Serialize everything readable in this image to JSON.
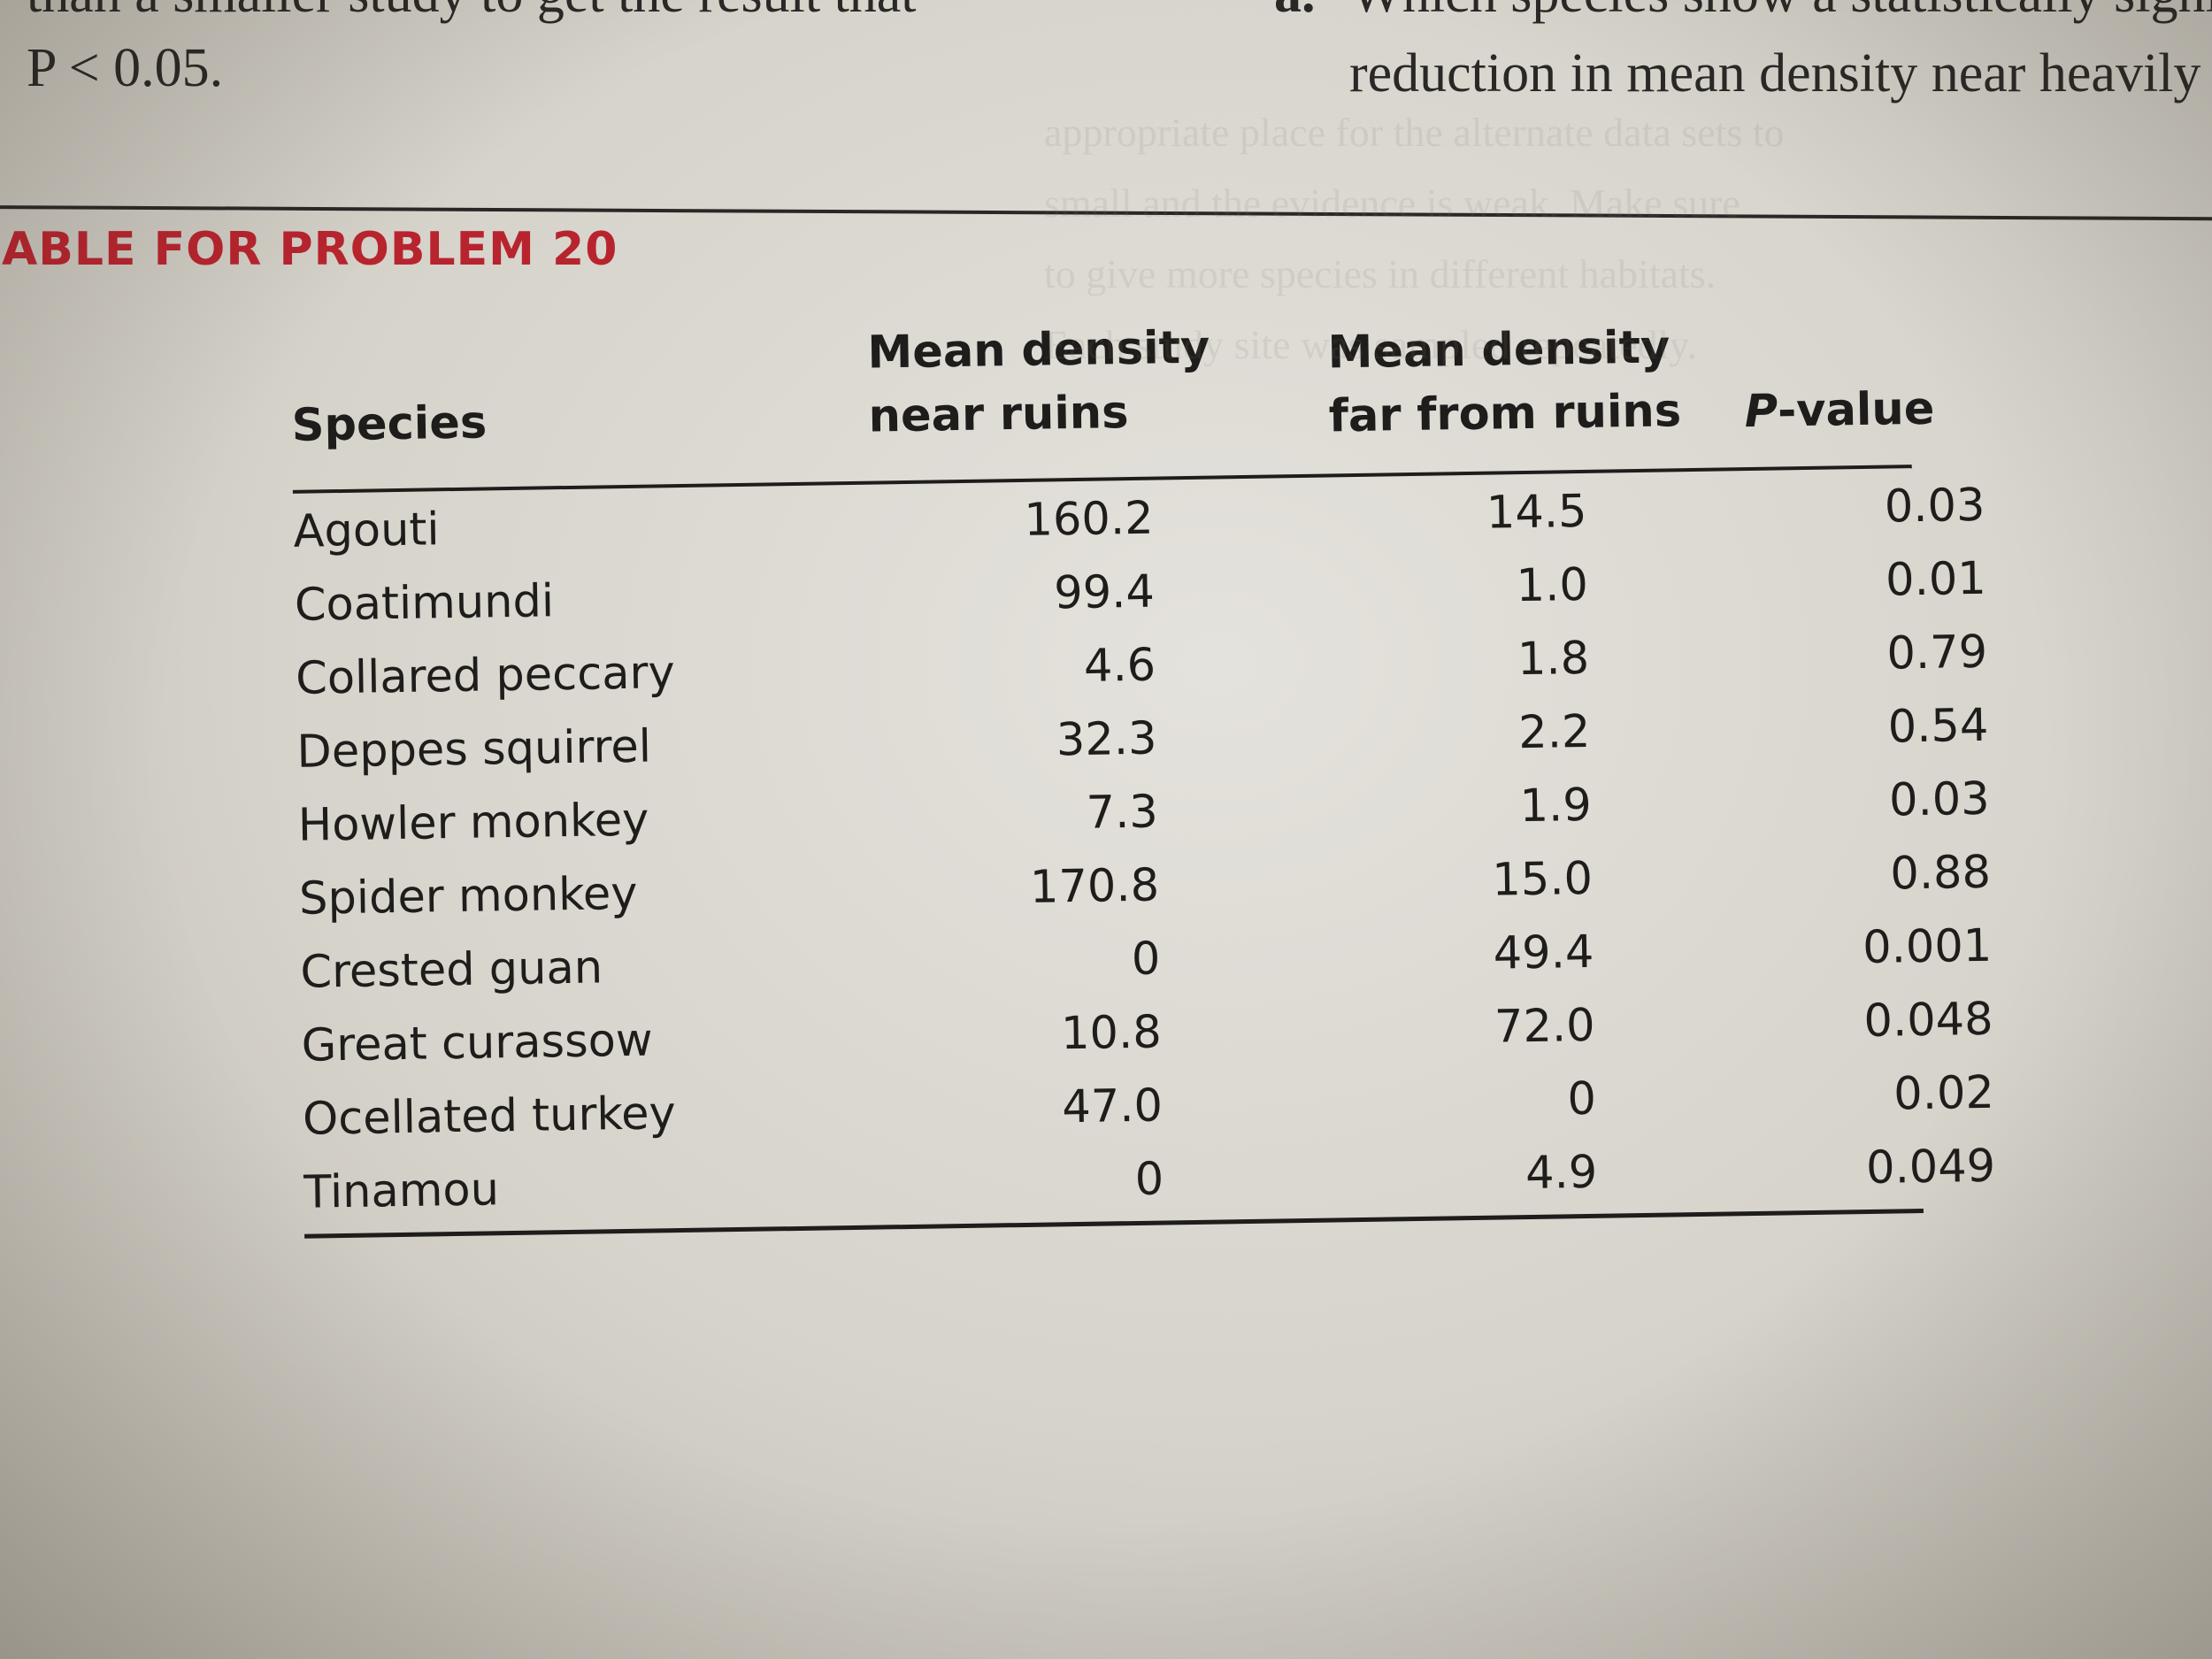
{
  "prev_text": {
    "left_line1": "than a smaller study to get the result that",
    "left_line2": "P < 0.05.",
    "right_label": "a.",
    "right_line1": "Which species show a statistically signif",
    "right_line2": "reduction in mean density near heavily"
  },
  "table": {
    "title": "ABLE FOR PROBLEM 20",
    "headers": {
      "species": "Species",
      "near_line1": "Mean density",
      "near_line2": "near ruins",
      "far_line1": "Mean density",
      "far_line2": "far from ruins",
      "p_italic": "P",
      "p_rest": "-value"
    },
    "rows": [
      {
        "species": "Agouti",
        "near": "160.2",
        "far": "14.5",
        "p": "0.03"
      },
      {
        "species": "Coatimundi",
        "near": "99.4",
        "far": "1.0",
        "p": "0.01"
      },
      {
        "species": "Collared peccary",
        "near": "4.6",
        "far": "1.8",
        "p": "0.79"
      },
      {
        "species": "Deppes squirrel",
        "near": "32.3",
        "far": "2.2",
        "p": "0.54"
      },
      {
        "species": "Howler monkey",
        "near": "7.3",
        "far": "1.9",
        "p": "0.03"
      },
      {
        "species": "Spider monkey",
        "near": "170.8",
        "far": "15.0",
        "p": "0.88"
      },
      {
        "species": "Crested guan",
        "near": "0",
        "far": "49.4",
        "p": "0.001"
      },
      {
        "species": "Great curassow",
        "near": "10.8",
        "far": "72.0",
        "p": "0.048"
      },
      {
        "species": "Ocellated turkey",
        "near": "47.0",
        "far": "0",
        "p": "0.02"
      },
      {
        "species": "Tinamou",
        "near": "0",
        "far": "4.9",
        "p": "0.049"
      }
    ]
  },
  "colors": {
    "title_red": "#b8242e",
    "ink": "#1f1d1b",
    "paper": "#e4e2dc"
  }
}
